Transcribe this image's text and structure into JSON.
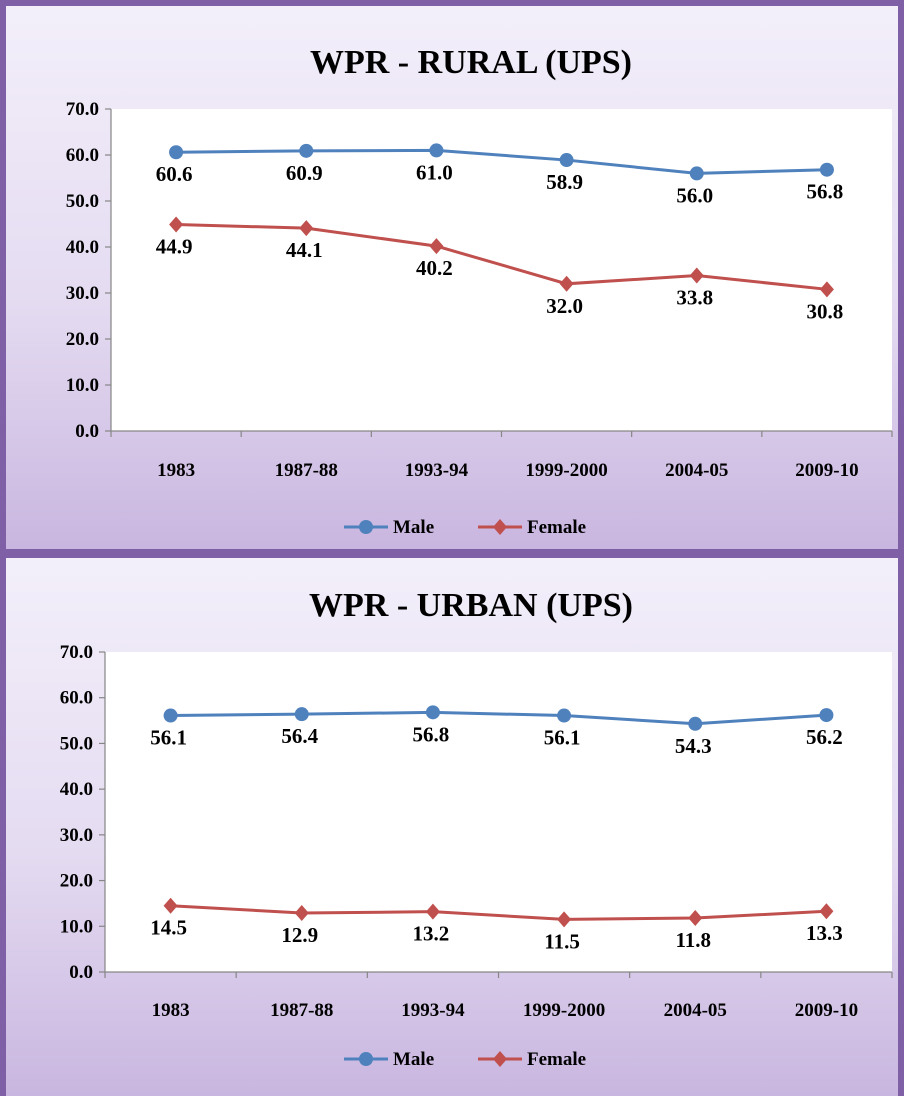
{
  "chart_data": [
    {
      "type": "line",
      "title": "WPR - RURAL (UPS)",
      "categories": [
        "1983",
        "1987-88",
        "1993-94",
        "1999-2000",
        "2004-05",
        "2009-10"
      ],
      "y_ticks": [
        "0.0",
        "10.0",
        "20.0",
        "30.0",
        "40.0",
        "50.0",
        "60.0",
        "70.0"
      ],
      "ylim": [
        0,
        70
      ],
      "grid": false,
      "legend": "bottom",
      "series": [
        {
          "name": "Male",
          "color": "#4f81bd",
          "marker": "circle",
          "values": [
            60.6,
            60.9,
            61.0,
            58.9,
            56.0,
            56.8
          ],
          "labels": [
            "60.6",
            "60.9",
            "61.0",
            "58.9",
            "56.0",
            "56.8"
          ]
        },
        {
          "name": "Female",
          "color": "#c0504d",
          "marker": "diamond",
          "values": [
            44.9,
            44.1,
            40.2,
            32.0,
            33.8,
            30.8
          ],
          "labels": [
            "44.9",
            "44.1",
            "40.2",
            "32.0",
            "33.8",
            "30.8"
          ]
        }
      ]
    },
    {
      "type": "line",
      "title": "WPR - URBAN (UPS)",
      "categories": [
        "1983",
        "1987-88",
        "1993-94",
        "1999-2000",
        "2004-05",
        "2009-10"
      ],
      "y_ticks": [
        "0.0",
        "10.0",
        "20.0",
        "30.0",
        "40.0",
        "50.0",
        "60.0",
        "70.0"
      ],
      "ylim": [
        0,
        70
      ],
      "grid": false,
      "legend": "bottom",
      "series": [
        {
          "name": "Male",
          "color": "#4f81bd",
          "marker": "circle",
          "values": [
            56.1,
            56.4,
            56.8,
            56.1,
            54.3,
            56.2
          ],
          "labels": [
            "56.1",
            "56.4",
            "56.8",
            "56.1",
            "54.3",
            "56.2"
          ]
        },
        {
          "name": "Female",
          "color": "#c0504d",
          "marker": "diamond",
          "values": [
            14.5,
            12.9,
            13.2,
            11.5,
            11.8,
            13.3
          ],
          "labels": [
            "14.5",
            "12.9",
            "13.2",
            "11.5",
            "11.8",
            "13.3"
          ]
        }
      ]
    }
  ]
}
